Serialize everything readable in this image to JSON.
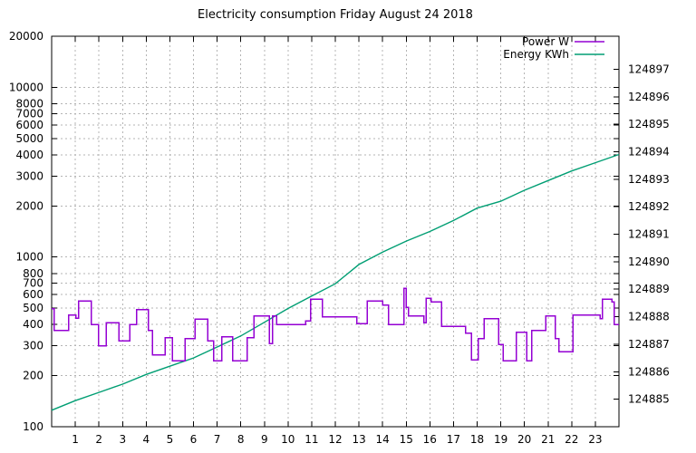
{
  "title": "Electricity consumption Friday August 24 2018",
  "legend": {
    "position": "top-right-inside",
    "items": [
      {
        "label": "Power W",
        "color": "#9400d3"
      },
      {
        "label": "Energy KWh",
        "color": "#009e73"
      }
    ]
  },
  "colors": {
    "power": "#9400d3",
    "energy": "#009e73",
    "grid": "#b4b4b4",
    "axis": "#000000",
    "background": "#ffffff"
  },
  "chart_data": {
    "type": "line",
    "title": "Electricity consumption Friday August 24 2018",
    "grid": true,
    "legend_position": "top-right-inside",
    "x_axis": {
      "range": [
        0,
        24
      ],
      "ticks": [
        1,
        2,
        3,
        4,
        5,
        6,
        7,
        8,
        9,
        10,
        11,
        12,
        13,
        14,
        15,
        16,
        17,
        18,
        19,
        20,
        21,
        22,
        23
      ]
    },
    "y_axis_left": {
      "scale": "log",
      "range": [
        100,
        20000
      ],
      "ticks": [
        100,
        200,
        300,
        400,
        500,
        600,
        700,
        800,
        1000,
        2000,
        3000,
        4000,
        5000,
        6000,
        7000,
        8000,
        10000,
        20000
      ]
    },
    "y_axis_right": {
      "scale": "linear",
      "plot_range": [
        124884.0,
        124898.2
      ],
      "ticks": [
        124885,
        124886,
        124887,
        124888,
        124889,
        124890,
        124891,
        124892,
        124893,
        124894,
        124895,
        124896,
        124897
      ]
    },
    "series": [
      {
        "name": "Power W",
        "color": "#9400d3",
        "style": "steps",
        "axis": "left",
        "points": [
          [
            0,
            495
          ],
          [
            0.1,
            370
          ],
          [
            0.72,
            455
          ],
          [
            1.03,
            437
          ],
          [
            1.13,
            550
          ],
          [
            1.67,
            400
          ],
          [
            1.98,
            300
          ],
          [
            2.3,
            410
          ],
          [
            2.85,
            320
          ],
          [
            3.3,
            400
          ],
          [
            3.6,
            490
          ],
          [
            4.1,
            370
          ],
          [
            4.27,
            265
          ],
          [
            4.8,
            335
          ],
          [
            5.1,
            245
          ],
          [
            5.65,
            330
          ],
          [
            6.07,
            430
          ],
          [
            6.6,
            320
          ],
          [
            6.85,
            245
          ],
          [
            7.2,
            340
          ],
          [
            7.65,
            245
          ],
          [
            8.27,
            335
          ],
          [
            8.55,
            450
          ],
          [
            9.2,
            310
          ],
          [
            9.35,
            450
          ],
          [
            9.52,
            400
          ],
          [
            10.75,
            420
          ],
          [
            10.95,
            565
          ],
          [
            11.45,
            445
          ],
          [
            12.9,
            405
          ],
          [
            13.35,
            550
          ],
          [
            14,
            520
          ],
          [
            14.25,
            400
          ],
          [
            14.9,
            655
          ],
          [
            15,
            505
          ],
          [
            15.1,
            450
          ],
          [
            15.75,
            410
          ],
          [
            15.85,
            570
          ],
          [
            16.05,
            545
          ],
          [
            16.5,
            390
          ],
          [
            17.5,
            355
          ],
          [
            17.75,
            248
          ],
          [
            18.05,
            330
          ],
          [
            18.3,
            433
          ],
          [
            18.9,
            305
          ],
          [
            19.1,
            245
          ],
          [
            19.65,
            360
          ],
          [
            20.1,
            245
          ],
          [
            20.3,
            370
          ],
          [
            20.9,
            450
          ],
          [
            21.3,
            330
          ],
          [
            21.45,
            277
          ],
          [
            22.05,
            455
          ],
          [
            23.2,
            433
          ],
          [
            23.3,
            565
          ],
          [
            23.7,
            545
          ],
          [
            23.8,
            400
          ]
        ]
      },
      {
        "name": "Energy KWh",
        "color": "#009e73",
        "style": "line",
        "axis": "right",
        "points": [
          [
            0,
            124884.6
          ],
          [
            1,
            124884.95
          ],
          [
            2,
            124885.25
          ],
          [
            3,
            124885.55
          ],
          [
            4,
            124885.9
          ],
          [
            5,
            124886.2
          ],
          [
            6,
            124886.5
          ],
          [
            7,
            124886.9
          ],
          [
            8,
            124887.3
          ],
          [
            9,
            124887.8
          ],
          [
            10,
            124888.3
          ],
          [
            11,
            124888.75
          ],
          [
            12,
            124889.2
          ],
          [
            13,
            124889.9
          ],
          [
            14,
            124890.35
          ],
          [
            15,
            124890.75
          ],
          [
            16,
            124891.1
          ],
          [
            17,
            124891.5
          ],
          [
            18,
            124891.95
          ],
          [
            19,
            124892.2
          ],
          [
            20,
            124892.6
          ],
          [
            21,
            124892.95
          ],
          [
            22,
            124893.3
          ],
          [
            23,
            124893.6
          ],
          [
            24,
            124893.9
          ]
        ]
      }
    ]
  }
}
